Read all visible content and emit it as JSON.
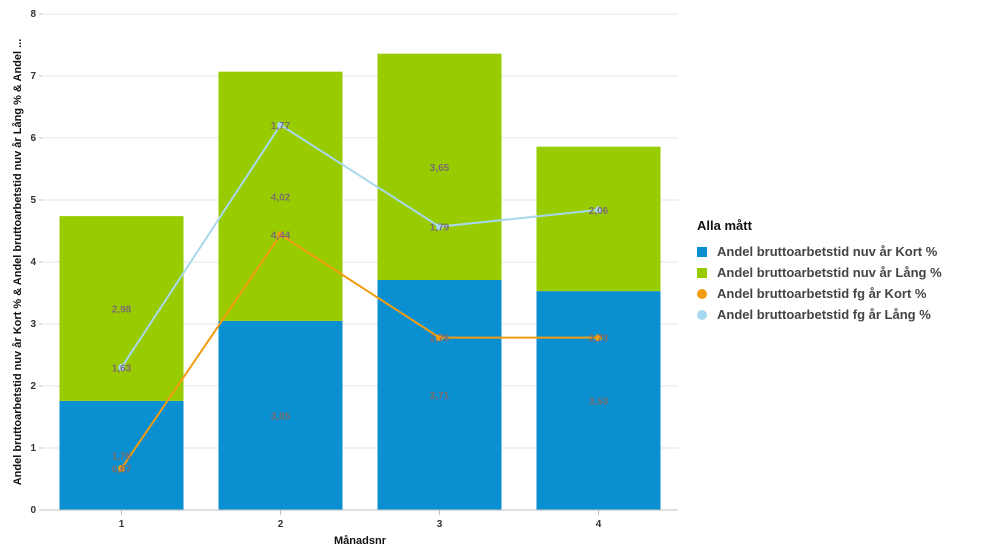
{
  "chart_data": {
    "type": "bar",
    "stacked": true,
    "categories": [
      "1",
      "2",
      "3",
      "4"
    ],
    "xlabel": "Månadsnr",
    "ylabel": "Andel bruttoarbetstid nuv år Kort % & Andel bruttoarbetstid nuv år Lång % & Andel ...",
    "ylim": [
      0,
      8
    ],
    "yticks": [
      "0",
      "1",
      "2",
      "3",
      "4",
      "5",
      "6",
      "7",
      "8"
    ],
    "grid": true,
    "legend_title": "Alla mått",
    "legend_position": "right",
    "bar_series": [
      {
        "name": "Andel bruttoarbetstid nuv år Kort %",
        "color": "#0a8fd1",
        "values": [
          1.76,
          3.05,
          3.71,
          3.53
        ],
        "labels": [
          "1,76",
          "3,05",
          "3,71",
          "3,53"
        ]
      },
      {
        "name": "Andel bruttoarbetstid nuv år Lång %",
        "color": "#99cc00",
        "values": [
          2.98,
          4.02,
          3.65,
          2.33
        ],
        "labels": [
          "2,98",
          "4,02",
          "3,65",
          ""
        ]
      }
    ],
    "line_series": [
      {
        "name": "Andel bruttoarbetstid fg år Kort %",
        "color": "#f39c12",
        "values": [
          0.67,
          4.44,
          2.78,
          2.78
        ],
        "labels": [
          "0,67",
          "4,44",
          "2,78",
          "2,78"
        ]
      },
      {
        "name": "Andel bruttoarbetstid fg år Lång %",
        "color": "#a8d8ef",
        "values": [
          2.3,
          6.21,
          4.57,
          4.84
        ],
        "labels": [
          "1,63",
          "1,77",
          "1,79",
          "2,06"
        ]
      }
    ]
  }
}
